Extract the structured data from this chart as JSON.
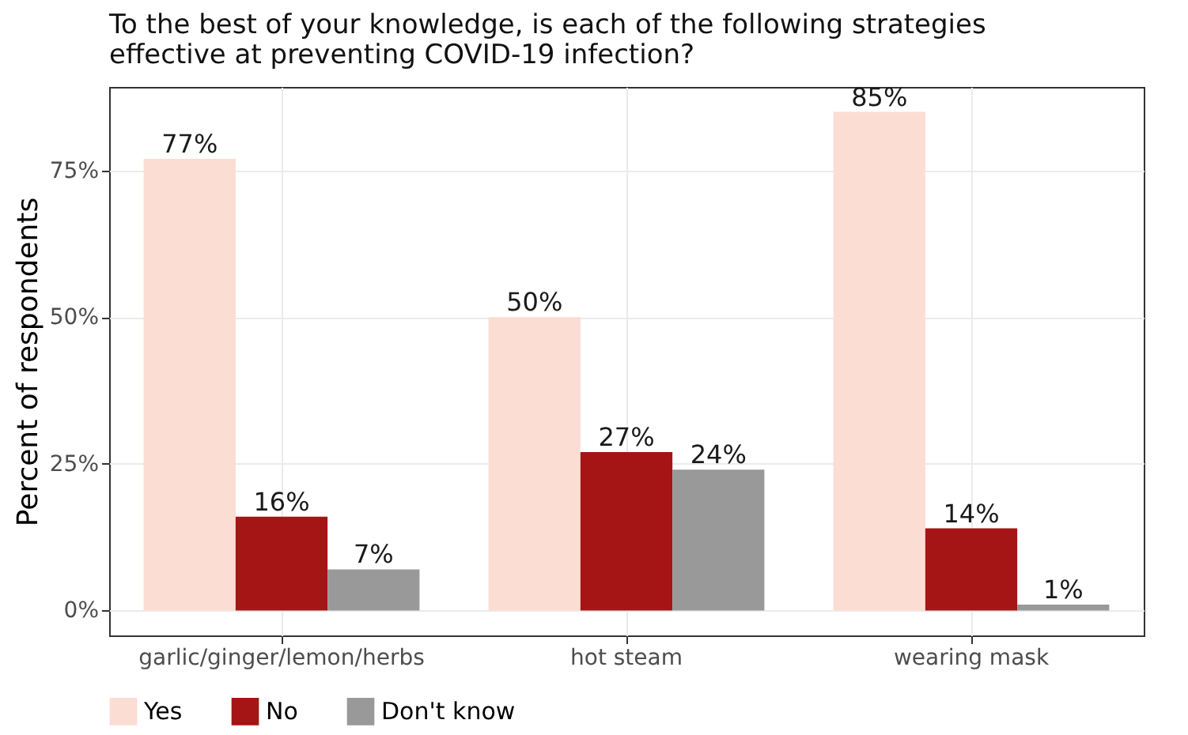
{
  "chart_data": {
    "type": "bar",
    "title": "To the best of your knowledge, is each of the following strategies effective at preventing COVID-19 infection?",
    "ylabel": "Percent of respondents",
    "categories": [
      "garlic/ginger/lemon/herbs",
      "hot steam",
      "wearing mask"
    ],
    "series": [
      {
        "name": "Yes",
        "color": "#fcddd3",
        "values": [
          77,
          50,
          85
        ],
        "value_labels": [
          "77%",
          "50%",
          "85%"
        ]
      },
      {
        "name": "No",
        "color": "#a51515",
        "values": [
          16,
          27,
          14
        ],
        "value_labels": [
          "16%",
          "27%",
          "14%"
        ]
      },
      {
        "name": "Don't know",
        "color": "#999999",
        "values": [
          7,
          24,
          1
        ],
        "value_labels": [
          "7%",
          "24%",
          "1%"
        ]
      }
    ],
    "ylim": [
      -4.25,
      89.25
    ],
    "yticks": [
      {
        "value": 0,
        "label": "0%"
      },
      {
        "value": 25,
        "label": "25%"
      },
      {
        "value": 50,
        "label": "50%"
      },
      {
        "value": 75,
        "label": "75%"
      }
    ],
    "grid": true,
    "legend": "bottom"
  }
}
